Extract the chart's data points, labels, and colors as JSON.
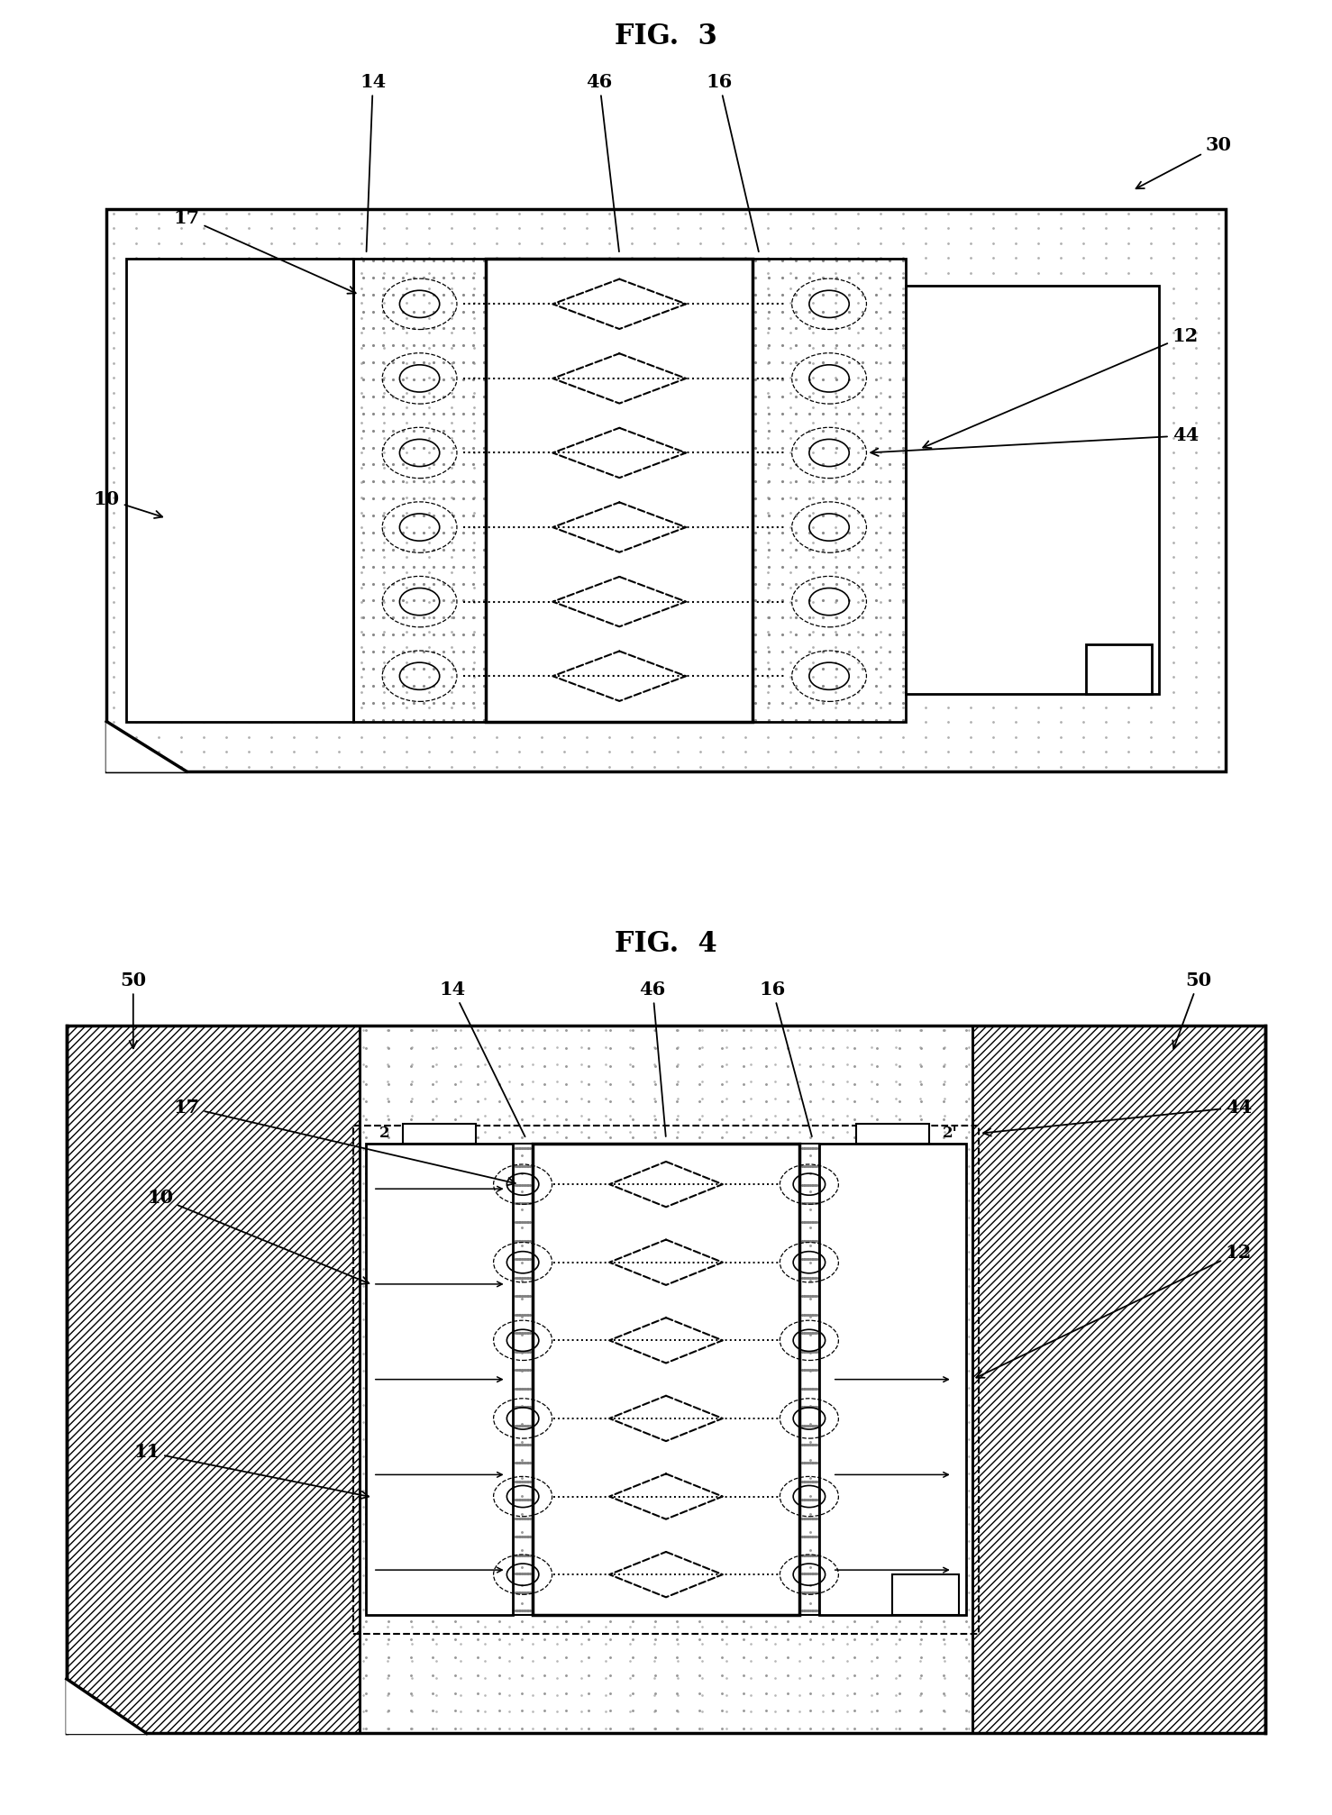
{
  "fig3_title": "FIG. 3",
  "fig4_title": "FIG. 4",
  "bg_color": "#ffffff"
}
